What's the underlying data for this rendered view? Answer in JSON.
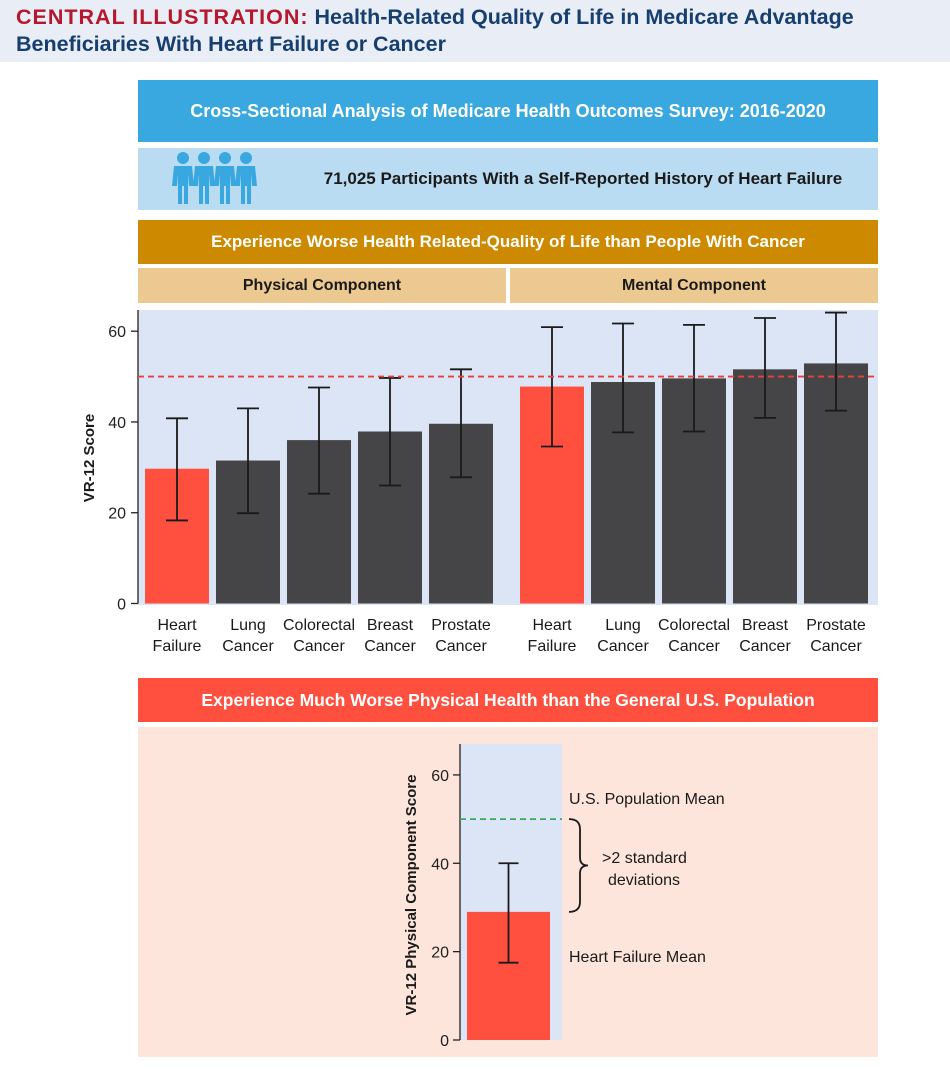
{
  "header": {
    "label": "CENTRAL ILLUSTRATION:",
    "title": "Health-Related Quality of Life in Medicare Advantage Beneficiaries With Heart Failure or Cancer"
  },
  "bands": {
    "analysis": "Cross-Sectional Analysis of Medicare Health Outcomes Survey: 2016-2020",
    "participants": "71,025 Participants With a Self-Reported History of Heart Failure",
    "participants_icon": "people-icon",
    "comparison": "Experience Worse Health Related-Quality of Life than People With Cancer",
    "physical": "Physical Component",
    "mental": "Mental Component",
    "general_population": "Experience Much Worse Physical Health than the General U.S. Population"
  },
  "colors": {
    "heart_failure": "#ff4f3e",
    "cancer": "#454447",
    "plot_background": "#dbe5f5",
    "reference_line_red": "#e8413a",
    "reference_line_green": "#3aaa5a",
    "icon_blue": "#3aa8e0"
  },
  "chart_data": [
    {
      "type": "bar",
      "ylabel": "VR-12 Score",
      "ylim": [
        0,
        65
      ],
      "yticks": [
        0,
        20,
        40,
        60
      ],
      "grid": false,
      "reference_line": 50,
      "groups": [
        {
          "name": "Physical Component",
          "categories": [
            [
              "Heart",
              "Failure"
            ],
            [
              "Lung",
              "Cancer"
            ],
            [
              "Colorectal",
              "Cancer"
            ],
            [
              "Breast",
              "Cancer"
            ],
            [
              "Prostate",
              "Cancer"
            ]
          ],
          "values": [
            29.7,
            31.5,
            36.0,
            37.9,
            39.6
          ],
          "error_low": [
            18.3,
            19.9,
            24.2,
            26.0,
            27.8
          ],
          "error_high": [
            40.8,
            43.0,
            47.6,
            49.7,
            51.6
          ]
        },
        {
          "name": "Mental Component",
          "categories": [
            [
              "Heart",
              "Failure"
            ],
            [
              "Lung",
              "Cancer"
            ],
            [
              "Colorectal",
              "Cancer"
            ],
            [
              "Breast",
              "Cancer"
            ],
            [
              "Prostate",
              "Cancer"
            ]
          ],
          "values": [
            47.8,
            48.8,
            49.6,
            51.6,
            52.9
          ],
          "error_low": [
            34.6,
            37.7,
            37.9,
            40.9,
            42.5
          ],
          "error_high": [
            60.9,
            61.7,
            61.4,
            62.9,
            64.1
          ]
        }
      ]
    },
    {
      "type": "bar",
      "ylabel": "VR-12 Physical Component Score",
      "ylim": [
        0,
        67
      ],
      "yticks": [
        0,
        20,
        40,
        60
      ],
      "values": [
        29.0
      ],
      "error_low": [
        17.5
      ],
      "error_high": [
        40.0
      ],
      "population_mean": 50,
      "annotations": {
        "population_mean": "U.S. Population Mean",
        "difference_line1": ">2 standard",
        "difference_line2": "deviations",
        "heart_failure_mean": "Heart Failure Mean"
      }
    }
  ]
}
